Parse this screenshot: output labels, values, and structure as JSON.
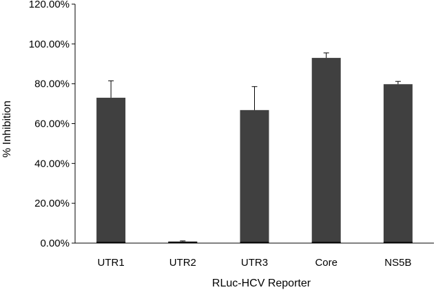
{
  "chart_data": {
    "type": "bar",
    "title": "",
    "xlabel": "RLuc-HCV Reporter",
    "ylabel": "% Inhibition",
    "categories": [
      "UTR1",
      "UTR2",
      "UTR3",
      "Core",
      "NS5B"
    ],
    "values": [
      73.0,
      0.8,
      66.8,
      93.0,
      79.8
    ],
    "error": [
      8.5,
      0.3,
      11.8,
      2.5,
      1.4
    ],
    "ylim": [
      0,
      120
    ],
    "yticks": [
      0,
      20,
      40,
      60,
      80,
      100,
      120
    ],
    "ytick_labels": [
      "0.00%",
      "20.00%",
      "40.00%",
      "60.00%",
      "80.00%",
      "100.00%",
      "120.00%"
    ],
    "grid": false,
    "legend": "none",
    "bar_color": "#404040"
  }
}
